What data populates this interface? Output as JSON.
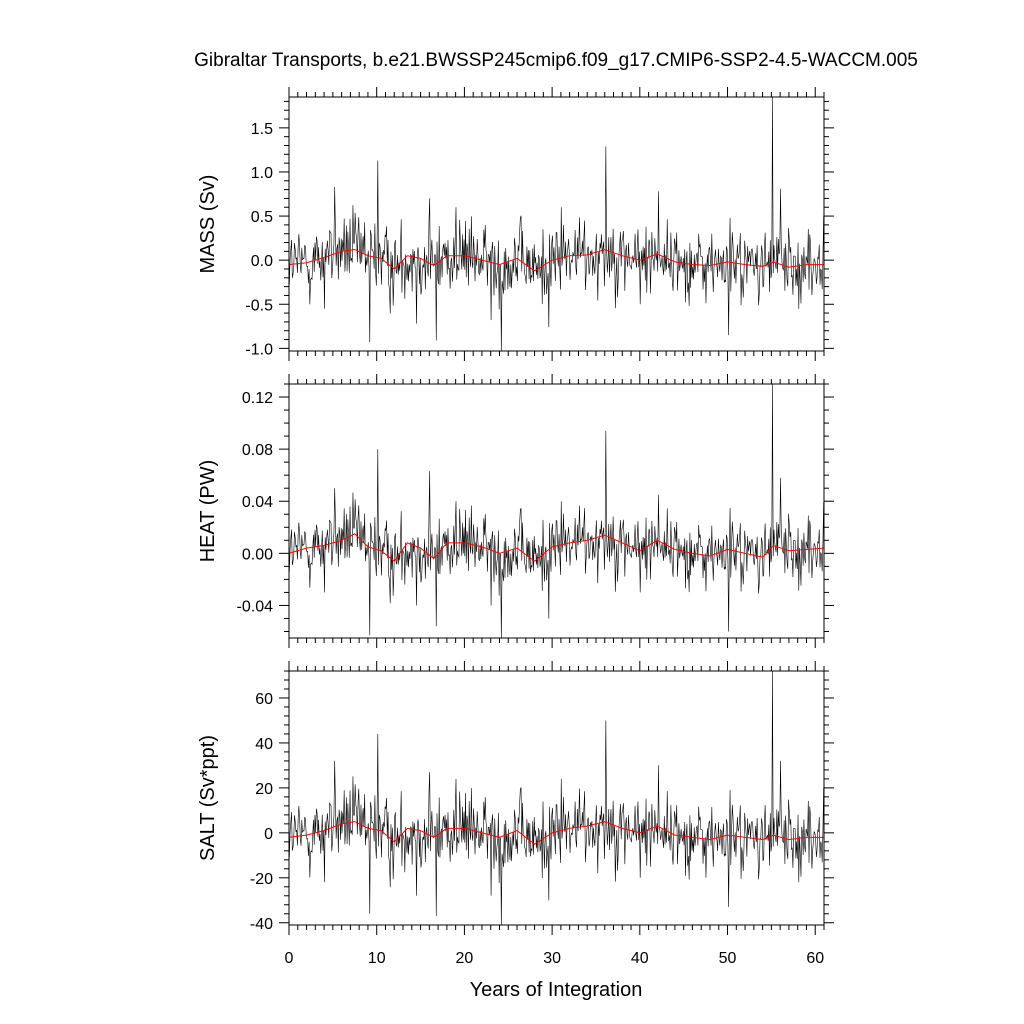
{
  "chart_data": {
    "type": "line",
    "title": "Gibraltar Transports, b.e21.BWSSP245cmip6.f09_g17.CMIP6-SSP2-4.5-WACCM.005",
    "xlabel": "Years of Integration",
    "xlim": [
      0,
      61
    ],
    "xticks": [
      0,
      10,
      20,
      30,
      40,
      50,
      60
    ],
    "xminor_step": 1,
    "colors": {
      "raw": "#000000",
      "smoothed": "#ff0000"
    },
    "panels": [
      {
        "ylabel": "MASS (Sv)",
        "ylim": [
          -1.03,
          1.85
        ],
        "yticks": [
          -1.0,
          -0.5,
          0.0,
          0.5,
          1.0,
          1.5
        ],
        "ytick_labels": [
          "-1.0",
          "-0.5",
          "0.0",
          "0.5",
          "1.0",
          "1.5"
        ],
        "yminor_step": 0.1,
        "peaks": [
          [
            5.2,
            0.83
          ],
          [
            10.1,
            1.13
          ],
          [
            36.1,
            1.29
          ],
          [
            55.1,
            1.85
          ],
          [
            42.1,
            0.78
          ],
          [
            56,
            0.81
          ],
          [
            16,
            0.7
          ],
          [
            19,
            0.6
          ],
          [
            31,
            0.6
          ]
        ],
        "troughs": [
          [
            9.2,
            -0.93
          ],
          [
            16.8,
            -0.91
          ],
          [
            24.2,
            -1.03
          ],
          [
            50.1,
            -0.85
          ],
          [
            23,
            -0.68
          ],
          [
            29.6,
            -0.76
          ],
          [
            14.5,
            -0.72
          ],
          [
            4,
            -0.55
          ],
          [
            40,
            -0.5
          ]
        ],
        "smooth": [
          [
            0,
            -0.05
          ],
          [
            2,
            -0.03
          ],
          [
            4,
            0.03
          ],
          [
            6,
            0.1
          ],
          [
            7.5,
            0.12
          ],
          [
            9,
            0.05
          ],
          [
            10.5,
            0.02
          ],
          [
            12,
            -0.1
          ],
          [
            13.5,
            0.05
          ],
          [
            15,
            0.02
          ],
          [
            16.5,
            -0.06
          ],
          [
            18,
            0.05
          ],
          [
            20,
            0.05
          ],
          [
            22,
            0.0
          ],
          [
            24,
            -0.05
          ],
          [
            26,
            0.02
          ],
          [
            28,
            -0.12
          ],
          [
            30,
            0.0
          ],
          [
            32,
            0.05
          ],
          [
            34,
            0.06
          ],
          [
            36,
            0.12
          ],
          [
            38,
            0.05
          ],
          [
            40,
            0.0
          ],
          [
            42,
            0.07
          ],
          [
            44,
            -0.02
          ],
          [
            46,
            -0.05
          ],
          [
            48,
            -0.06
          ],
          [
            50,
            -0.02
          ],
          [
            52,
            -0.05
          ],
          [
            54,
            -0.07
          ],
          [
            55.2,
            -0.02
          ],
          [
            57,
            -0.08
          ],
          [
            59,
            -0.05
          ],
          [
            61,
            -0.05
          ]
        ]
      },
      {
        "ylabel": "HEAT (PW)",
        "ylim": [
          -0.065,
          0.13
        ],
        "yticks": [
          -0.04,
          0.0,
          0.04,
          0.08,
          0.12
        ],
        "ytick_labels": [
          "-0.04",
          "0.00",
          "0.04",
          "0.08",
          "0.12"
        ],
        "yminor_step": 0.01,
        "peaks": [
          [
            5.2,
            0.05
          ],
          [
            10.1,
            0.08
          ],
          [
            36.1,
            0.094
          ],
          [
            55.1,
            0.13
          ],
          [
            42.1,
            0.045
          ],
          [
            56,
            0.058
          ],
          [
            16,
            0.063
          ],
          [
            19,
            0.04
          ],
          [
            31,
            0.04
          ]
        ],
        "troughs": [
          [
            9.2,
            -0.063
          ],
          [
            16.8,
            -0.056
          ],
          [
            24.2,
            -0.065
          ],
          [
            50.1,
            -0.06
          ],
          [
            23,
            -0.04
          ],
          [
            29.6,
            -0.05
          ],
          [
            14.5,
            -0.04
          ],
          [
            4,
            -0.03
          ],
          [
            40,
            -0.03
          ]
        ],
        "smooth": [
          [
            0,
            0.0
          ],
          [
            2,
            0.004
          ],
          [
            4,
            0.006
          ],
          [
            6,
            0.01
          ],
          [
            7.5,
            0.015
          ],
          [
            9,
            0.005
          ],
          [
            10.5,
            0.002
          ],
          [
            12,
            -0.006
          ],
          [
            13.5,
            0.008
          ],
          [
            15,
            0.004
          ],
          [
            16.5,
            -0.004
          ],
          [
            18,
            0.008
          ],
          [
            20,
            0.008
          ],
          [
            22,
            0.005
          ],
          [
            24,
            0.0
          ],
          [
            26,
            0.004
          ],
          [
            28,
            -0.006
          ],
          [
            30,
            0.005
          ],
          [
            32,
            0.008
          ],
          [
            34,
            0.01
          ],
          [
            36,
            0.014
          ],
          [
            38,
            0.008
          ],
          [
            40,
            0.002
          ],
          [
            42,
            0.01
          ],
          [
            44,
            0.003
          ],
          [
            46,
            0.0
          ],
          [
            48,
            -0.002
          ],
          [
            50,
            0.003
          ],
          [
            52,
            0.0
          ],
          [
            54,
            -0.003
          ],
          [
            55.2,
            0.006
          ],
          [
            57,
            0.002
          ],
          [
            59,
            0.003
          ],
          [
            61,
            0.004
          ]
        ]
      },
      {
        "ylabel": "SALT (Sv*ppt)",
        "ylim": [
          -41,
          72
        ],
        "yticks": [
          -40,
          -20,
          0,
          20,
          40,
          60
        ],
        "ytick_labels": [
          "-40",
          "-20",
          "0",
          "20",
          "40",
          "60"
        ],
        "yminor_step": 4,
        "peaks": [
          [
            5.2,
            32
          ],
          [
            10.1,
            44
          ],
          [
            36.1,
            50
          ],
          [
            55.1,
            72
          ],
          [
            42.1,
            30
          ],
          [
            56,
            32
          ],
          [
            16,
            27
          ],
          [
            19,
            24
          ],
          [
            31,
            24
          ]
        ],
        "troughs": [
          [
            9.2,
            -36
          ],
          [
            16.8,
            -37
          ],
          [
            24.2,
            -41
          ],
          [
            50.1,
            -33
          ],
          [
            23,
            -28
          ],
          [
            29.6,
            -30
          ],
          [
            14.5,
            -28
          ],
          [
            4,
            -22
          ],
          [
            40,
            -20
          ]
        ],
        "smooth": [
          [
            0,
            -2
          ],
          [
            2,
            -1
          ],
          [
            4,
            1
          ],
          [
            6,
            4
          ],
          [
            7.5,
            5
          ],
          [
            9,
            2
          ],
          [
            10.5,
            1
          ],
          [
            12,
            -4
          ],
          [
            13.5,
            2
          ],
          [
            15,
            1
          ],
          [
            16.5,
            -2
          ],
          [
            18,
            2
          ],
          [
            20,
            2
          ],
          [
            22,
            0
          ],
          [
            24,
            -2
          ],
          [
            26,
            1
          ],
          [
            28,
            -5
          ],
          [
            30,
            0
          ],
          [
            32,
            2
          ],
          [
            34,
            3
          ],
          [
            36,
            5
          ],
          [
            38,
            2
          ],
          [
            40,
            0
          ],
          [
            42,
            3
          ],
          [
            44,
            -1
          ],
          [
            46,
            -2
          ],
          [
            48,
            -3
          ],
          [
            50,
            -1
          ],
          [
            52,
            -2
          ],
          [
            54,
            -3
          ],
          [
            55.2,
            -1
          ],
          [
            57,
            -3
          ],
          [
            59,
            -2
          ],
          [
            61,
            -2
          ]
        ]
      }
    ]
  }
}
